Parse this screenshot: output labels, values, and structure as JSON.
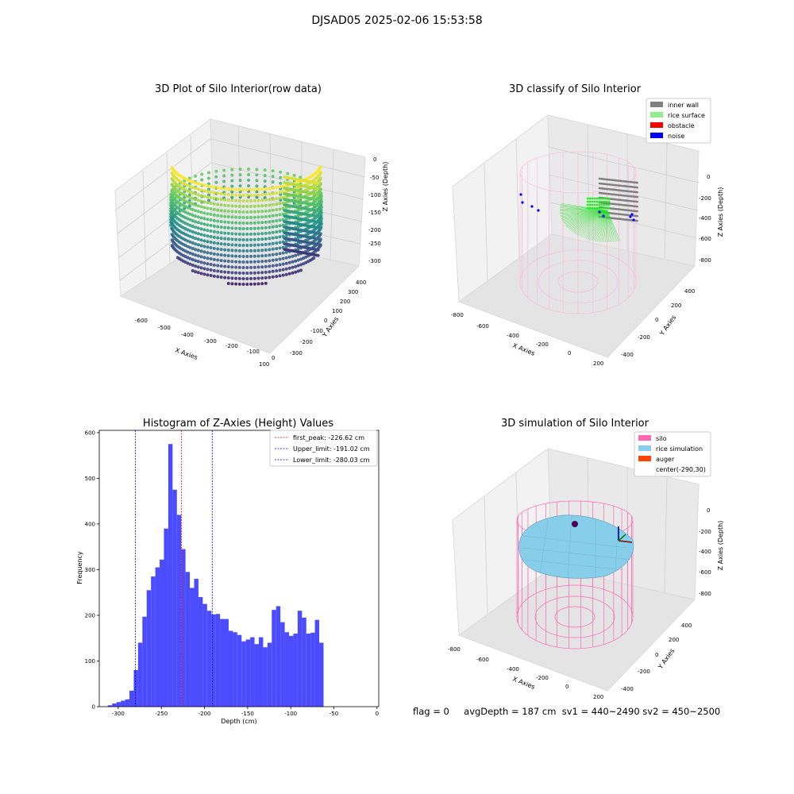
{
  "suptitle": "DJSAD05 2025-02-06 15:53:58",
  "panels": {
    "raw": {
      "title": "3D Plot of Silo Interior(row data)",
      "xlabel": "X Axies",
      "ylabel": "Y Axies",
      "zlabel": "Z Axies (Depth)",
      "xticks": [
        "-600",
        "-500",
        "-400",
        "-300",
        "-200",
        "-100",
        "0",
        "100"
      ],
      "yticks": [
        "-300",
        "-200",
        "-100",
        "0",
        "100",
        "200",
        "300",
        "400"
      ],
      "zticks": [
        "0",
        "-50",
        "-100",
        "-150",
        "-200",
        "-250",
        "-300"
      ]
    },
    "classify": {
      "title": "3D classify of Silo Interior",
      "xlabel": "X Axies",
      "ylabel": "Y Axies",
      "zlabel": "Z Axies (Depth)",
      "xticks": [
        "-800",
        "-600",
        "-400",
        "-200",
        "0",
        "200"
      ],
      "yticks": [
        "-400",
        "-200",
        "0",
        "200",
        "400"
      ],
      "zticks": [
        "0",
        "-200",
        "-400",
        "-600",
        "-800"
      ],
      "legend": [
        {
          "label": "inner wall",
          "color": "#808080"
        },
        {
          "label": "rice surface",
          "color": "#90ee90"
        },
        {
          "label": "obstacle",
          "color": "#ff0000"
        },
        {
          "label": "noise",
          "color": "#0000ff"
        }
      ]
    },
    "simulation": {
      "title": "3D simulation of Silo Interior",
      "xlabel": "X Axies",
      "ylabel": "Y Axies",
      "zlabel": "Z Axies (Depth)",
      "xticks": [
        "-800",
        "-600",
        "-400",
        "-200",
        "0",
        "200"
      ],
      "yticks": [
        "-400",
        "-200",
        "0",
        "200",
        "400"
      ],
      "zticks": [
        "0",
        "-200",
        "-400",
        "-600",
        "-800"
      ],
      "legend": [
        {
          "label": "silo",
          "color": "#ff69b4"
        },
        {
          "label": "rice simulation",
          "color": "#87ceeb"
        },
        {
          "label": "auger",
          "color": "#ff4500"
        },
        {
          "label": "center(-290,30)",
          "color": ""
        }
      ]
    }
  },
  "colors": {
    "bars": "#4b4bff",
    "peak_line": "#ff0000",
    "limit_line": "#0000ff"
  },
  "chart_data": {
    "type": "bar",
    "title": "Histogram of Z-Axies (Height) Values",
    "xlabel": "Depth (cm)",
    "ylabel": "Frequency",
    "xlim": [
      -322,
      2
    ],
    "ylim": [
      0,
      605
    ],
    "xticks": [
      -300,
      -250,
      -200,
      -150,
      -100,
      -50,
      0
    ],
    "yticks": [
      0,
      100,
      200,
      300,
      400,
      500,
      600
    ],
    "bin_start": -312,
    "bin_width": 5,
    "values": [
      3,
      7,
      10,
      13,
      16,
      35,
      80,
      140,
      197,
      255,
      285,
      305,
      322,
      390,
      575,
      475,
      420,
      345,
      295,
      260,
      280,
      240,
      225,
      210,
      202,
      203,
      192,
      192,
      166,
      163,
      157,
      143,
      147,
      152,
      137,
      152,
      130,
      140,
      212,
      220,
      185,
      163,
      155,
      160,
      210,
      195,
      160,
      162,
      190,
      140
    ],
    "vlines": [
      {
        "label": "first_peak: -226.62 cm",
        "x": -226.62,
        "color": "#ff0000"
      },
      {
        "label": "Upper_limit: -191.02 cm",
        "x": -191.02,
        "color": "#0000ff"
      },
      {
        "label": "Lower_limit: -280.03 cm",
        "x": -280.03,
        "color": "#0000ff"
      }
    ]
  },
  "status": {
    "flag": "flag = 0",
    "avg": "avgDepth = 187 cm",
    "sv1": "sv1 = 440~2490",
    "sv2": "sv2 = 450~2500"
  }
}
